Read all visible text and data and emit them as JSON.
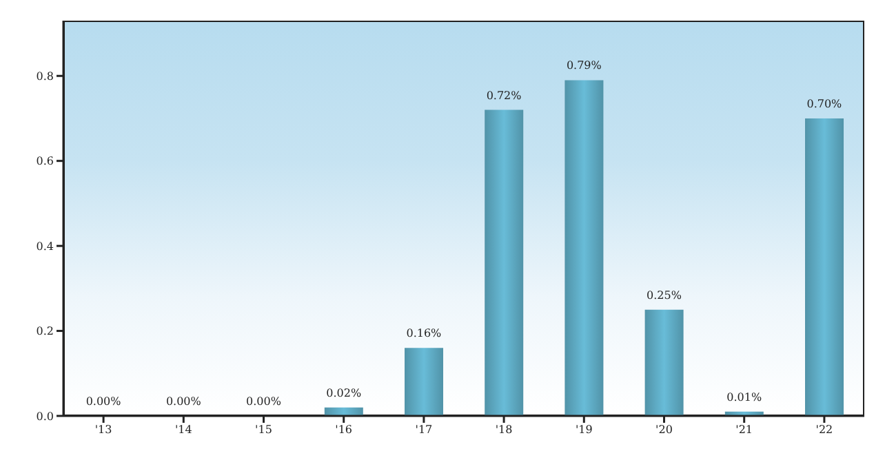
{
  "chart_data": {
    "type": "bar",
    "categories": [
      "'13",
      "'14",
      "'15",
      "'16",
      "'17",
      "'18",
      "'19",
      "'20",
      "'21",
      "'22"
    ],
    "values": [
      0,
      0,
      0,
      0.02,
      0.16,
      0.72,
      0.79,
      0.25,
      0.01,
      0.7
    ],
    "value_labels": [
      "0.00%",
      "0.00%",
      "0.00%",
      "0.02%",
      "0.16%",
      "0.72%",
      "0.79%",
      "0.25%",
      "0.01%",
      "0.70%"
    ],
    "color": "#68bcd8",
    "ylim": [
      0,
      0.93
    ],
    "yticks": [
      {
        "value": 0,
        "label": "0.0"
      },
      0.2,
      0.4,
      0.6,
      0.8
    ],
    "grid": false,
    "legend": false
  }
}
